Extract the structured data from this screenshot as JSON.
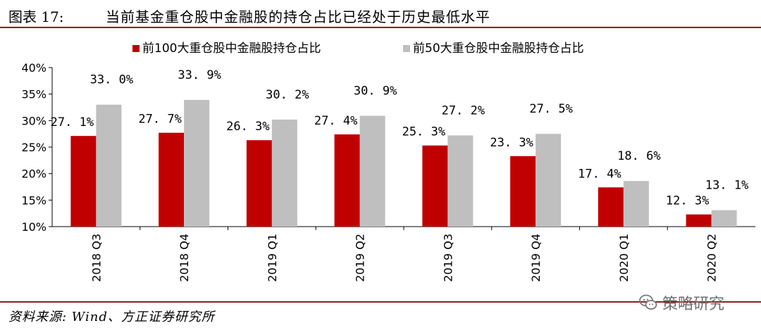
{
  "figure": {
    "label": "图表 17:",
    "title": "当前基金重仓股中金融股的持仓占比已经处于历史最低水平"
  },
  "source": "资料来源:  Wind、方正证券研究所",
  "watermark": {
    "text": "策略研究",
    "icon": "wechat-icon"
  },
  "chart_data": {
    "type": "bar",
    "title": "",
    "xlabel": "",
    "ylabel": "",
    "categories": [
      "2018 Q3",
      "2018 Q4",
      "2019 Q1",
      "2019 Q2",
      "2019 Q3",
      "2019 Q4",
      "2020 Q1",
      "2020 Q2"
    ],
    "series": [
      {
        "name": "前100大重仓股中金融股持仓占比",
        "color": "#c00000",
        "values": [
          27.1,
          27.7,
          26.3,
          27.4,
          25.3,
          23.3,
          17.4,
          12.3
        ]
      },
      {
        "name": "前50大重仓股中金融股持仓占比",
        "color": "#bfbfbf",
        "values": [
          33.0,
          33.9,
          30.2,
          30.9,
          27.2,
          27.5,
          18.6,
          13.1
        ]
      }
    ],
    "data_labels": [
      [
        "27. 1%",
        "27. 7%",
        "26. 3%",
        "27. 4%",
        "25. 3%",
        "23. 3%",
        "17. 4%",
        "12. 3%"
      ],
      [
        "33. 0%",
        "33. 9%",
        "30. 2%",
        "30. 9%",
        "27. 2%",
        "27. 5%",
        "18. 6%",
        "13. 1%"
      ]
    ],
    "ylim": [
      10,
      40
    ],
    "yticks": [
      10,
      15,
      20,
      25,
      30,
      35,
      40
    ],
    "ytick_labels": [
      "10%",
      "15%",
      "20%",
      "25%",
      "30%",
      "35%",
      "40%"
    ],
    "grid": false,
    "legend_position": "top-center"
  }
}
